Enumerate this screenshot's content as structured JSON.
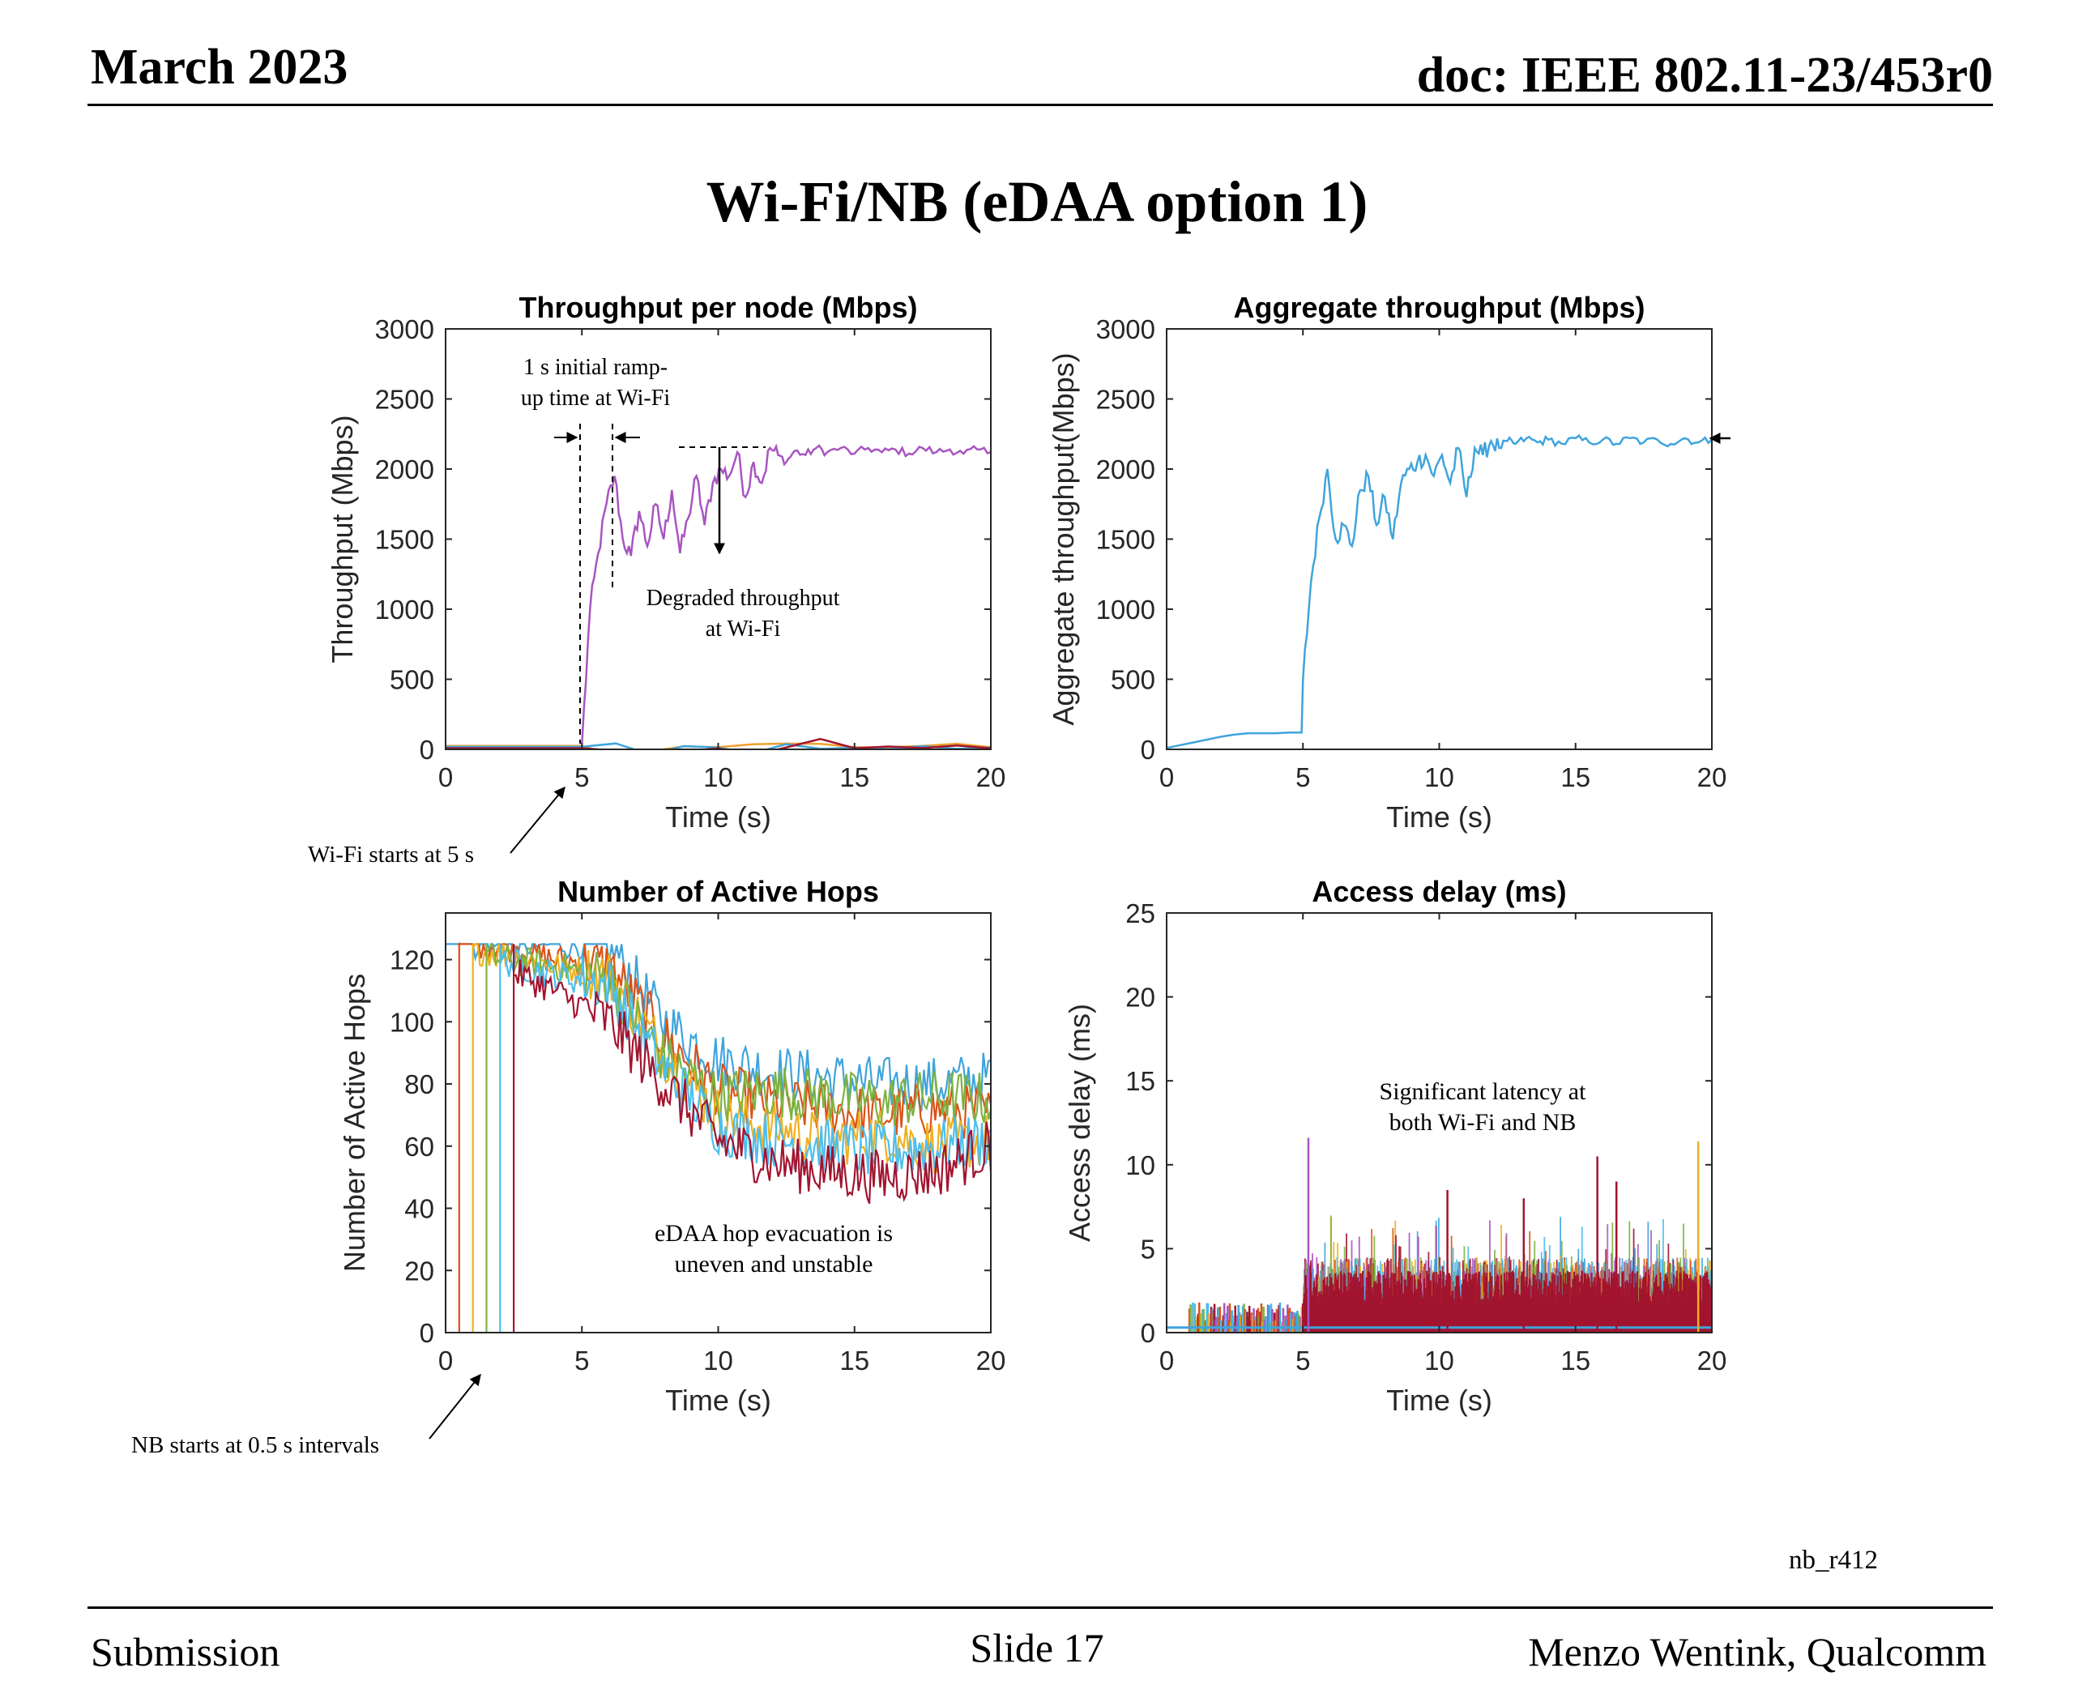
{
  "header": {
    "date": "March 2023",
    "doc": "doc: IEEE 802.11-23/453r0"
  },
  "slide_title": "Wi-Fi/NB (eDAA option 1)",
  "figure_id": "nb_r412",
  "footer": {
    "left": "Submission",
    "center": "Slide 17",
    "right": "Menzo Wentink, Qualcomm"
  },
  "colors": {
    "purple": "#A855C0",
    "blue": "#3FA4DC",
    "orange": "#F0A030",
    "green": "#7CB342",
    "red": "#D95319",
    "yellow": "#EDB120",
    "lightblue": "#4DBEEE",
    "darkred": "#A2142F",
    "navy": "#1F6FB5"
  },
  "chart_data": [
    {
      "id": "throughput-per-node",
      "type": "line",
      "title": "Throughput per node (Mbps)",
      "xlabel": "Time (s)",
      "ylabel": "Throughput (Mbps)",
      "xlim": [
        0,
        20
      ],
      "ylim": [
        0,
        3000
      ],
      "xticks": [
        0,
        5,
        10,
        15,
        20
      ],
      "yticks": [
        0,
        500,
        1000,
        1500,
        2000,
        2500,
        3000
      ],
      "series": [
        {
          "role": "wifi",
          "color": "purple",
          "x": [
            0,
            4.95,
            5.0,
            5.3,
            5.6,
            5.9,
            6.2,
            6.5,
            6.8,
            7.1,
            7.4,
            7.7,
            8.0,
            8.3,
            8.6,
            8.9,
            9.2,
            9.5,
            9.8,
            10.1,
            10.4,
            10.7,
            11.0,
            11.3,
            11.6,
            11.9,
            12.2,
            12.5,
            12.8,
            13.2,
            13.6,
            14.0,
            14.5,
            15.0,
            15.5,
            16.0,
            16.5,
            17.0,
            17.5,
            18.0,
            18.5,
            19.0,
            19.5,
            20.0
          ],
          "y": [
            20,
            20,
            30,
            1000,
            1400,
            1750,
            1950,
            1500,
            1380,
            1700,
            1450,
            1750,
            1500,
            1850,
            1400,
            1650,
            1950,
            1600,
            1900,
            2000,
            1950,
            2120,
            1800,
            2050,
            1900,
            2150,
            2100,
            2050,
            2130,
            2100,
            2150,
            2120,
            2150,
            2110,
            2150,
            2120,
            2140,
            2110,
            2150,
            2120,
            2140,
            2110,
            2140,
            2120
          ]
        },
        {
          "role": "nb-1",
          "color": "orange",
          "x": [
            0,
            5,
            10,
            15,
            20
          ],
          "y": [
            25,
            25,
            15,
            15,
            15
          ]
        },
        {
          "role": "nb-2",
          "color": "blue",
          "x": [
            0,
            5,
            10,
            15,
            20
          ],
          "y": [
            18,
            18,
            12,
            12,
            12
          ]
        },
        {
          "role": "nb-3",
          "color": "darkred",
          "x": [
            0,
            5,
            10,
            15,
            20
          ],
          "y": [
            8,
            8,
            8,
            8,
            8
          ]
        }
      ],
      "annotations": [
        {
          "text": "1 s initial ramp-up time at Wi-Fi"
        },
        {
          "text": "Degraded throughput at Wi-Fi"
        }
      ]
    },
    {
      "id": "aggregate-throughput",
      "type": "line",
      "title": "Aggregate throughput (Mbps)",
      "xlabel": "Time (s)",
      "ylabel": "Aggregate throughput(Mbps)",
      "xlim": [
        0,
        20
      ],
      "ylim": [
        0,
        3000
      ],
      "xticks": [
        0,
        5,
        10,
        15,
        20
      ],
      "yticks": [
        0,
        500,
        1000,
        1500,
        2000,
        2500,
        3000
      ],
      "series": [
        {
          "color": "blue",
          "x": [
            0,
            0.5,
            1.0,
            1.5,
            2.0,
            2.5,
            3.0,
            3.5,
            4.0,
            4.5,
            4.95,
            5.0,
            5.3,
            5.6,
            5.9,
            6.2,
            6.5,
            6.8,
            7.1,
            7.4,
            7.7,
            8.0,
            8.3,
            8.6,
            8.9,
            9.2,
            9.5,
            9.8,
            10.1,
            10.4,
            10.7,
            11.0,
            11.3,
            11.6,
            11.9,
            12.2,
            12.5,
            12.8,
            13.2,
            13.6,
            14.0,
            14.5,
            15.0,
            15.5,
            16.0,
            16.5,
            17.0,
            17.5,
            18.0,
            18.5,
            19.0,
            19.5,
            20.0
          ],
          "y": [
            10,
            30,
            50,
            70,
            90,
            105,
            115,
            115,
            115,
            120,
            120,
            500,
            1200,
            1650,
            2000,
            1500,
            1600,
            1450,
            1850,
            1950,
            1600,
            1800,
            1500,
            1900,
            2000,
            2050,
            2100,
            1950,
            2100,
            1900,
            2150,
            1800,
            2150,
            2100,
            2200,
            2150,
            2200,
            2180,
            2220,
            2190,
            2210,
            2180,
            2220,
            2190,
            2210,
            2180,
            2220,
            2190,
            2210,
            2180,
            2220,
            2190,
            2210
          ]
        }
      ]
    },
    {
      "id": "active-hops",
      "type": "line",
      "title": "Number of Active Hops",
      "xlabel": "Time (s)",
      "ylabel": "Number of Active Hops",
      "xlim": [
        0,
        20
      ],
      "ylim": [
        0,
        135
      ],
      "xticks": [
        0,
        5,
        10,
        15,
        20
      ],
      "yticks": [
        0,
        20,
        40,
        60,
        80,
        100,
        120
      ],
      "series": [
        {
          "color": "blue",
          "start": 0,
          "base": [
            125,
            125,
            125,
            125,
            100,
            88,
            84,
            82,
            80,
            80,
            82
          ]
        },
        {
          "color": "red",
          "start": 0.5,
          "base": [
            125,
            125,
            120,
            118,
            95,
            78,
            74,
            72,
            70,
            72,
            70
          ]
        },
        {
          "color": "yellow",
          "start": 1.0,
          "base": [
            125,
            122,
            118,
            115,
            90,
            70,
            66,
            62,
            64,
            60,
            62
          ]
        },
        {
          "color": "green",
          "start": 1.5,
          "base": [
            125,
            120,
            118,
            114,
            88,
            76,
            78,
            76,
            74,
            76,
            75
          ]
        },
        {
          "color": "lightblue",
          "start": 2.0,
          "base": [
            125,
            120,
            115,
            112,
            85,
            66,
            62,
            60,
            58,
            60,
            62
          ]
        },
        {
          "color": "darkred",
          "start": 2.5,
          "base": [
            125,
            118,
            110,
            100,
            80,
            62,
            55,
            52,
            50,
            52,
            60
          ]
        }
      ],
      "annotations": [
        {
          "text": "eDAA hop evacuation is uneven and unstable"
        }
      ]
    },
    {
      "id": "access-delay",
      "type": "bar",
      "title": "Access delay (ms)",
      "xlabel": "Time (s)",
      "ylabel": "Access delay (ms)",
      "xlim": [
        0,
        20
      ],
      "ylim": [
        0,
        25
      ],
      "xticks": [
        0,
        5,
        10,
        15,
        20
      ],
      "yticks": [
        0,
        5,
        10,
        15,
        20,
        25
      ],
      "pre_wifi_level_ms": 1.5,
      "post_wifi_band_ms": [
        2,
        4.5
      ],
      "peaks": [
        {
          "x": 5.2,
          "y": 11.6,
          "color": "purple"
        },
        {
          "x": 10.3,
          "y": 8.5,
          "color": "darkred"
        },
        {
          "x": 15.8,
          "y": 10.5,
          "color": "darkred"
        },
        {
          "x": 19.5,
          "y": 11.4,
          "color": "yellow"
        },
        {
          "x": 13.1,
          "y": 8.0,
          "color": "darkred"
        },
        {
          "x": 16.5,
          "y": 9.0,
          "color": "darkred"
        }
      ],
      "annotations": [
        {
          "text": "Significant latency at both Wi-Fi and NB"
        }
      ]
    }
  ],
  "side_notes": {
    "wifi_start": "Wi-Fi starts at 5 s",
    "nb_start": "NB starts at 0.5 s intervals"
  }
}
